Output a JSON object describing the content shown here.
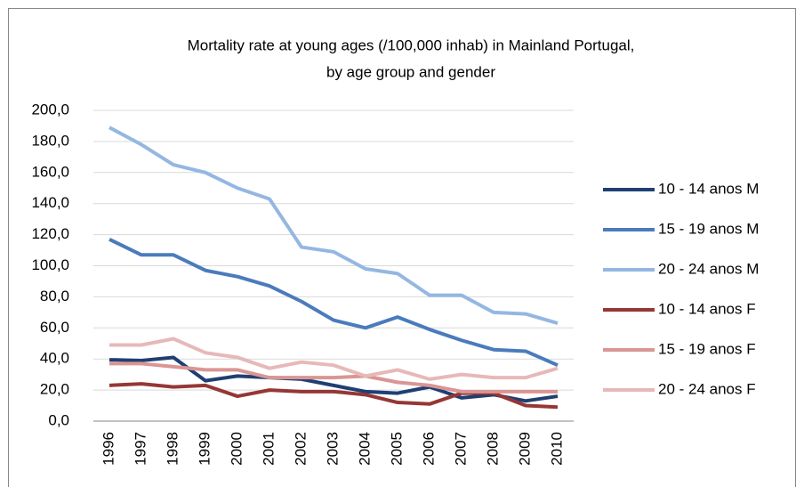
{
  "chart_data": {
    "type": "line",
    "title": [
      "Mortality rate at young ages (/100,000 inhab) in Mainland Portugal,",
      "by age group and gender"
    ],
    "categories": [
      "1996",
      "1997",
      "1998",
      "1999",
      "2000",
      "2001",
      "2002",
      "2003",
      "2004",
      "2005",
      "2006",
      "2007",
      "2008",
      "2009",
      "2010"
    ],
    "series": [
      {
        "name": "10 - 14 anos M",
        "color": "#1f3f73",
        "values": [
          39.5,
          39,
          41,
          26,
          29,
          28,
          27,
          23,
          19,
          18,
          22,
          15,
          17,
          13,
          16
        ]
      },
      {
        "name": "15 - 19 anos M",
        "color": "#4a7bbc",
        "values": [
          117,
          107,
          107,
          97,
          93,
          87,
          77,
          65,
          60,
          67,
          59,
          52,
          46,
          45,
          36
        ]
      },
      {
        "name": "20 - 24 anos M",
        "color": "#94b7e2",
        "values": [
          189,
          178,
          165,
          160,
          150,
          143,
          112,
          109,
          98,
          95,
          81,
          81,
          70,
          69,
          63
        ]
      },
      {
        "name": "10 - 14 anos F",
        "color": "#953735",
        "values": [
          23,
          24,
          22,
          23,
          16,
          20,
          19,
          19,
          17,
          12,
          11,
          18,
          18,
          10,
          9
        ]
      },
      {
        "name": "15 - 19 anos F",
        "color": "#d99694",
        "values": [
          37,
          37,
          35,
          33,
          33,
          28,
          28,
          28,
          29,
          25,
          23,
          19,
          19,
          19,
          19
        ]
      },
      {
        "name": "20 - 24 anos F",
        "color": "#e6b9b8",
        "values": [
          49,
          49,
          53,
          44,
          41,
          34,
          38,
          36,
          29,
          33,
          27,
          30,
          28,
          28,
          34
        ]
      }
    ],
    "ylim": [
      0,
      200
    ],
    "yticks": [
      {
        "value": 0,
        "label": "0,0"
      },
      {
        "value": 20,
        "label": "20,0"
      },
      {
        "value": 40,
        "label": "40,0"
      },
      {
        "value": 60,
        "label": "60,0"
      },
      {
        "value": 80,
        "label": "80,0"
      },
      {
        "value": 100,
        "label": "100,0"
      },
      {
        "value": 120,
        "label": "120,0"
      },
      {
        "value": 140,
        "label": "140,0"
      },
      {
        "value": 160,
        "label": "160,0"
      },
      {
        "value": 180,
        "label": "180,0"
      },
      {
        "value": 200,
        "label": "200,0"
      }
    ],
    "grid": true,
    "legend": "right"
  }
}
